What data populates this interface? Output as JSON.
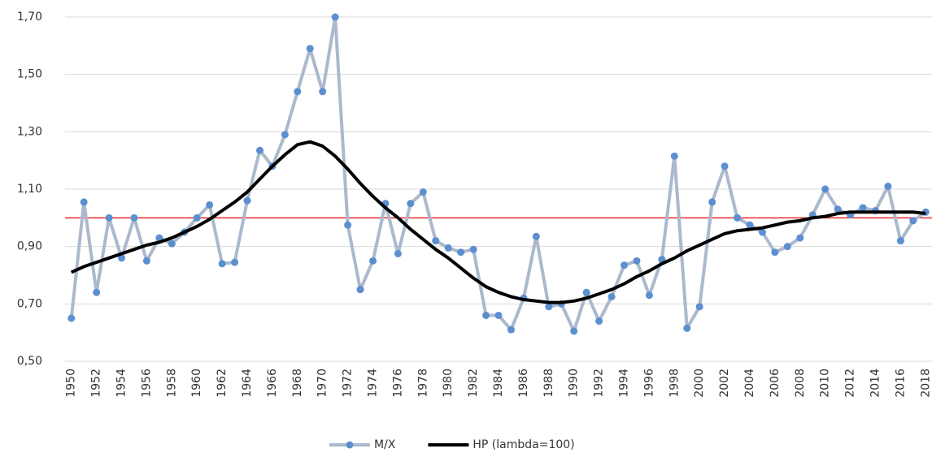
{
  "chart_data": {
    "type": "line",
    "categories": [
      "1950",
      null,
      "1952",
      null,
      "1954",
      null,
      "1956",
      null,
      "1958",
      null,
      "1960",
      null,
      "1962",
      null,
      "1964",
      null,
      "1966",
      null,
      "1968",
      null,
      "1970",
      null,
      "1972",
      null,
      "1974",
      null,
      "1976",
      null,
      "1978",
      null,
      "1980",
      null,
      "1982",
      null,
      "1984",
      null,
      "1986",
      null,
      "1988",
      null,
      "1990",
      null,
      "1992",
      null,
      "1994",
      null,
      "1996",
      null,
      "1998",
      null,
      "2000",
      null,
      "2002",
      null,
      "2004",
      null,
      "2006",
      null,
      "2008",
      null,
      "2010",
      null,
      "2012",
      null,
      "2014",
      null,
      "2016",
      null,
      "2018"
    ],
    "series": [
      {
        "name": "M/X",
        "color": "#abb9cd",
        "marker_color": "#5b8fcf",
        "markers": true,
        "values": [
          0.65,
          1.055,
          0.74,
          1.0,
          0.86,
          1.0,
          0.85,
          0.93,
          0.91,
          0.95,
          1.0,
          1.045,
          0.84,
          0.845,
          1.06,
          1.235,
          1.18,
          1.29,
          1.44,
          1.59,
          1.44,
          1.7,
          0.975,
          0.75,
          0.85,
          1.05,
          0.875,
          1.05,
          1.09,
          0.92,
          0.895,
          0.88,
          0.89,
          0.66,
          0.66,
          0.61,
          0.72,
          0.935,
          0.69,
          0.7,
          0.605,
          0.74,
          0.64,
          0.725,
          0.835,
          0.85,
          0.73,
          0.855,
          1.215,
          0.615,
          0.69,
          1.055,
          1.18,
          1.0,
          0.975,
          0.95,
          0.88,
          0.9,
          0.93,
          1.01,
          1.1,
          1.03,
          1.01,
          1.035,
          1.025,
          1.11,
          0.92,
          0.99,
          1.02
        ]
      },
      {
        "name": "HP (lambda=100)",
        "color": "#000000",
        "markers": false,
        "values": [
          0.81,
          0.83,
          0.845,
          0.86,
          0.875,
          0.89,
          0.905,
          0.915,
          0.93,
          0.95,
          0.97,
          0.995,
          1.025,
          1.055,
          1.09,
          1.135,
          1.18,
          1.22,
          1.255,
          1.265,
          1.25,
          1.215,
          1.17,
          1.12,
          1.075,
          1.035,
          1.0,
          0.96,
          0.925,
          0.89,
          0.86,
          0.825,
          0.79,
          0.76,
          0.74,
          0.725,
          0.715,
          0.71,
          0.705,
          0.705,
          0.71,
          0.72,
          0.735,
          0.75,
          0.77,
          0.795,
          0.815,
          0.84,
          0.86,
          0.885,
          0.905,
          0.925,
          0.945,
          0.955,
          0.96,
          0.965,
          0.975,
          0.985,
          0.99,
          1.0,
          1.005,
          1.015,
          1.02,
          1.02,
          1.02,
          1.02,
          1.02,
          1.02,
          1.015
        ]
      }
    ],
    "ylim": [
      0.5,
      1.7
    ],
    "yticks": [
      {
        "value": 0.5,
        "label": "0,50"
      },
      {
        "value": 0.7,
        "label": "0,70"
      },
      {
        "value": 0.9,
        "label": "0,90"
      },
      {
        "value": 1.1,
        "label": "1,10"
      },
      {
        "value": 1.3,
        "label": "1,30"
      },
      {
        "value": 1.5,
        "label": "1,50"
      },
      {
        "value": 1.7,
        "label": "1,70"
      }
    ],
    "grid": true,
    "reference_line": {
      "value": 1.0,
      "color": "#e8292b"
    },
    "legend": "bottom"
  }
}
